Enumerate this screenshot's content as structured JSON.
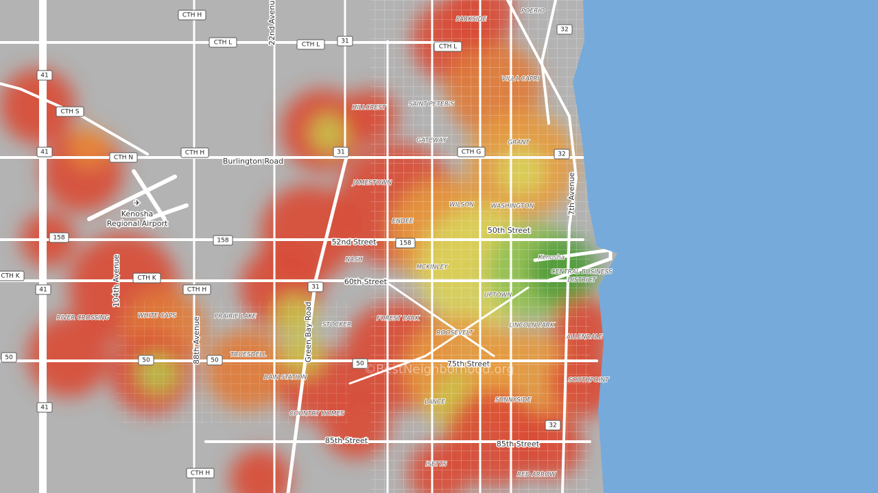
{
  "map": {
    "streets": [
      "Burlington Road",
      "52nd Street",
      "60th Street",
      "50th Street",
      "75th Street",
      "85th Street",
      "85th Street"
    ],
    "avenues": [
      "Green Bay Road",
      "88th Avenue",
      "104th Avenue",
      "22nd Avenue",
      "7th Avenue"
    ],
    "shields": [
      "CTH H",
      "CTH L",
      "CTH L",
      "31",
      "CTH L",
      "32",
      "41",
      "CTH S",
      "41",
      "CTH H",
      "CTH N",
      "31",
      "CTH G",
      "32",
      "158",
      "158",
      "158",
      "CTH K",
      "CTH K",
      "41",
      "CTH H",
      "31",
      "50",
      "50",
      "50",
      "50",
      "32",
      "41",
      "CTH H"
    ],
    "neighborhoods": [
      "PARKSIDE",
      "POERIO",
      "VILLA CAPRI",
      "HILLCREST",
      "SAINT PETER'S",
      "GATEWAY",
      "GRANT",
      "JAMESTOWN",
      "WILSON",
      "WASHINGTON",
      "ENDEE",
      "NASH",
      "MCKINLEY",
      "UPTOWN",
      "RIVER CROSSING",
      "WHITE CAPS",
      "PRAIRIE LAKE",
      "STOCKER",
      "FOREST PARK",
      "LINCOLN PARK",
      "ROOSEVELT",
      "ALLENDALE",
      "BAIN STATION",
      "LANCE",
      "SOUTHPOINT",
      "SUNNYSIDE",
      "COUNTRY HOMES",
      "ISETTS",
      "RED ARROW"
    ],
    "city": "Kenosha",
    "district": [
      "CENTRAL BUSINESS",
      "DISTRICT"
    ],
    "town": "TRUESDELL",
    "airport": [
      "Kenosha",
      "Regional Airport"
    ],
    "watermark": "©BestNeighborhood.org"
  }
}
